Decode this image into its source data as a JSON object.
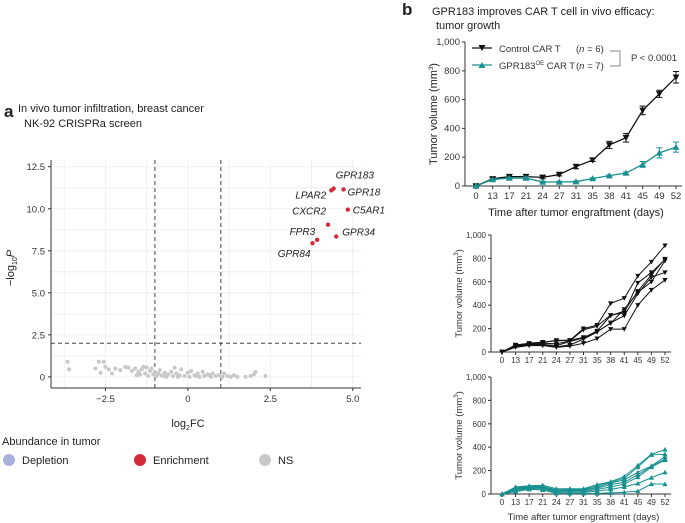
{
  "colors": {
    "enrichment": "#d62a3a",
    "depletion": "#a8b0dc",
    "ns": "#c8c8c8",
    "control": "#111111",
    "gpr183": "#1a9090"
  },
  "panel_a": {
    "label": "a",
    "title_line1": "In vivo tumor infiltration, breast cancer",
    "title_line2": "NK-92 CRISPRa screen",
    "legend": {
      "title": "Abundance in tumor",
      "items": [
        {
          "label": "Depletion",
          "color": "#a8b0dc"
        },
        {
          "label": "Enrichment",
          "color": "#d62a3a"
        },
        {
          "label": "NS",
          "color": "#c8c8c8"
        }
      ]
    }
  },
  "panel_b": {
    "label": "b",
    "title_line1": "GPR183 improves CAR T cell in vivo efficacy:",
    "title_line2": "tumor growth",
    "legend": {
      "control": "Control CAR T",
      "control_n_pre": "(",
      "control_n_var": "n",
      "control_n_post": " = 6)",
      "gpr_main": "GPR183",
      "gpr_sup": "OE",
      "gpr_tail": " CAR T",
      "gpr_n_pre": "(",
      "gpr_n_var": "n",
      "gpr_n_post": " = 7)",
      "pvalue": "P < 0.0001"
    }
  },
  "chart_data": [
    {
      "type": "scatter",
      "xlabel": {
        "main": "log",
        "sub": "2",
        "tail": "FC"
      },
      "ylabel": {
        "main": "−log",
        "sub": "10",
        "tail": "P"
      },
      "xlim": [
        -4.15,
        5.25
      ],
      "ylim": [
        -0.66,
        12.9
      ],
      "xticks": [
        -2.5,
        0,
        2.5,
        5.0
      ],
      "xtick_labels": [
        "−2.5",
        "0",
        "2.5",
        "5.0"
      ],
      "yticks": [
        0,
        2.5,
        5,
        7.5,
        10,
        12.5
      ],
      "ytick_labels": [
        "0",
        "2.5",
        "5.0",
        "7.5",
        "10.0",
        "12.5"
      ],
      "grid": true,
      "thresholds": {
        "log2fc": [
          -1,
          1
        ],
        "neg_log10p": 2
      },
      "enriched": [
        {
          "gene": "GPR183",
          "x": 4.42,
          "y": 11.2
        },
        {
          "gene": "LPAR2",
          "x": 4.35,
          "y": 11.1
        },
        {
          "gene": "GPR18",
          "x": 4.72,
          "y": 11.15
        },
        {
          "gene": "C5AR1",
          "x": 4.85,
          "y": 9.95
        },
        {
          "gene": "CXCR2",
          "x": 4.25,
          "y": 9.05
        },
        {
          "gene": "GPR34",
          "x": 4.5,
          "y": 8.35
        },
        {
          "gene": "FPR3",
          "x": 3.92,
          "y": 8.15
        },
        {
          "gene": "GPR84",
          "x": 3.78,
          "y": 7.95
        }
      ],
      "ns": [
        [
          -3.65,
          0.9
        ],
        [
          -3.6,
          0.45
        ],
        [
          -2.7,
          0.9
        ],
        [
          -2.55,
          0.9
        ],
        [
          -2.8,
          0.5
        ],
        [
          -2.65,
          0.25
        ],
        [
          -2.5,
          0.6
        ],
        [
          -2.4,
          0.45
        ],
        [
          -2.3,
          0.2
        ],
        [
          -2.2,
          0.5
        ],
        [
          -2.05,
          0.4
        ],
        [
          -1.9,
          0.6
        ],
        [
          -1.8,
          0.55
        ],
        [
          -1.7,
          0.35
        ],
        [
          -1.6,
          0.5
        ],
        [
          -1.55,
          0.1
        ],
        [
          -1.5,
          0.3
        ],
        [
          -1.4,
          0.45
        ],
        [
          -1.35,
          0.6
        ],
        [
          -1.3,
          0.2
        ],
        [
          -1.25,
          0.55
        ],
        [
          -1.2,
          0.05
        ],
        [
          -1.15,
          0.35
        ],
        [
          -1.1,
          0.5
        ],
        [
          -1.05,
          0.15
        ],
        [
          -1.0,
          0.3
        ],
        [
          -0.95,
          0.05
        ],
        [
          -0.9,
          0.2
        ],
        [
          -0.85,
          0.4
        ],
        [
          -0.8,
          0.1
        ],
        [
          -0.7,
          0.25
        ],
        [
          -0.65,
          0.0
        ],
        [
          -0.6,
          0.15
        ],
        [
          -0.5,
          0.3
        ],
        [
          -0.45,
          0.05
        ],
        [
          -0.4,
          0.55
        ],
        [
          -0.35,
          0.2
        ],
        [
          -0.3,
          0.0
        ],
        [
          -0.25,
          0.1
        ],
        [
          -0.2,
          0.45
        ],
        [
          -0.1,
          0.05
        ],
        [
          0.0,
          0.25
        ],
        [
          0.05,
          0.0
        ],
        [
          0.1,
          0.35
        ],
        [
          0.2,
          0.1
        ],
        [
          0.3,
          0.2
        ],
        [
          0.35,
          0.0
        ],
        [
          0.45,
          0.3
        ],
        [
          0.5,
          0.05
        ],
        [
          0.6,
          0.15
        ],
        [
          0.7,
          0.0
        ],
        [
          0.75,
          0.2
        ],
        [
          0.85,
          0.05
        ],
        [
          0.95,
          0.1
        ],
        [
          1.05,
          0.0
        ],
        [
          1.1,
          0.2
        ],
        [
          1.2,
          0.05
        ],
        [
          1.3,
          0.0
        ],
        [
          1.4,
          0.1
        ],
        [
          1.5,
          0.0
        ],
        [
          1.75,
          0.0
        ],
        [
          1.9,
          0.05
        ],
        [
          2.0,
          0.15
        ],
        [
          2.05,
          0.3
        ],
        [
          2.35,
          0.05
        ],
        [
          -1.45,
          0.15
        ],
        [
          -0.75,
          0.05
        ],
        [
          0.25,
          0.05
        ],
        [
          0.65,
          0.1
        ]
      ]
    },
    {
      "type": "line",
      "categories": [
        "0",
        "13",
        "17",
        "21",
        "24",
        "27",
        "31",
        "35",
        "38",
        "41",
        "45",
        "49",
        "52"
      ],
      "xlabel": "Time after tumor engraftment (days)",
      "ylabel": {
        "main": "Tumor volume (mm",
        "sup": "3",
        "tail": ")"
      },
      "ylim": [
        0,
        1000
      ],
      "yticks": [
        0,
        200,
        400,
        600,
        800,
        1000
      ],
      "ytick_labels": [
        "0",
        "200",
        "400",
        "600",
        "800",
        "1,000"
      ],
      "series": [
        {
          "name": "Control CAR T",
          "marker": "triangle-down",
          "values": [
            0,
            50,
            65,
            65,
            60,
            80,
            135,
            180,
            285,
            335,
            525,
            640,
            755
          ],
          "errors": [
            10,
            10,
            15,
            15,
            10,
            10,
            15,
            10,
            25,
            30,
            30,
            25,
            40
          ]
        },
        {
          "name": "GPR183OE CAR T",
          "marker": "triangle-up",
          "values": [
            0,
            45,
            55,
            55,
            28,
            28,
            30,
            52,
            72,
            90,
            150,
            230,
            270
          ],
          "errors": [
            5,
            5,
            5,
            8,
            5,
            5,
            5,
            5,
            5,
            8,
            20,
            35,
            35
          ]
        }
      ]
    },
    {
      "type": "line",
      "categories": [
        "0",
        "13",
        "17",
        "21",
        "24",
        "27",
        "31",
        "35",
        "38",
        "41",
        "45",
        "49",
        "52"
      ],
      "ylabel": {
        "main": "Tumor volume (mm",
        "sup": "3",
        "tail": ")"
      },
      "ylim": [
        0,
        1000
      ],
      "yticks": [
        0,
        200,
        400,
        600,
        800,
        1000
      ],
      "ytick_labels": [
        "0",
        "200",
        "400",
        "600",
        "800",
        "1,000"
      ],
      "series": [
        {
          "values": [
            0,
            60,
            75,
            85,
            95,
            100,
            200,
            230,
            415,
            460,
            650,
            770,
            910
          ]
        },
        {
          "values": [
            0,
            55,
            70,
            75,
            70,
            95,
            190,
            220,
            315,
            335,
            590,
            680,
            790
          ]
        },
        {
          "values": [
            0,
            50,
            65,
            65,
            55,
            90,
            120,
            180,
            310,
            350,
            520,
            660,
            795
          ]
        },
        {
          "values": [
            0,
            45,
            60,
            60,
            45,
            60,
            110,
            170,
            250,
            310,
            500,
            640,
            680
          ]
        },
        {
          "values": [
            0,
            40,
            55,
            55,
            40,
            50,
            75,
            115,
            195,
            195,
            400,
            530,
            615
          ]
        },
        {
          "values": [
            0,
            60,
            70,
            80,
            100,
            100,
            125,
            175,
            245,
            365,
            510,
            600,
            780
          ]
        }
      ]
    },
    {
      "type": "line",
      "categories": [
        "0",
        "13",
        "17",
        "21",
        "24",
        "27",
        "31",
        "35",
        "38",
        "41",
        "45",
        "49",
        "52"
      ],
      "xlabel": "Time after tumor engraftment (days)",
      "ylabel": {
        "main": "Tumor volume (mm",
        "sup": "3",
        "tail": ")"
      },
      "ylim": [
        0,
        1000
      ],
      "yticks": [
        0,
        200,
        400,
        600,
        800,
        1000
      ],
      "ytick_labels": [
        "0",
        "200",
        "400",
        "600",
        "800",
        "1,000"
      ],
      "series": [
        {
          "values": [
            0,
            60,
            70,
            75,
            45,
            45,
            45,
            80,
            105,
            150,
            245,
            340,
            380
          ]
        },
        {
          "values": [
            0,
            55,
            65,
            65,
            35,
            40,
            40,
            75,
            100,
            135,
            230,
            335,
            340
          ]
        },
        {
          "values": [
            0,
            50,
            60,
            60,
            30,
            35,
            35,
            60,
            95,
            120,
            185,
            240,
            320
          ]
        },
        {
          "values": [
            0,
            45,
            55,
            55,
            25,
            30,
            30,
            50,
            80,
            100,
            165,
            235,
            300
          ]
        },
        {
          "values": [
            0,
            40,
            50,
            50,
            20,
            20,
            20,
            40,
            60,
            85,
            145,
            230,
            290
          ]
        },
        {
          "values": [
            0,
            30,
            45,
            40,
            15,
            15,
            15,
            25,
            40,
            60,
            90,
            140,
            185
          ]
        },
        {
          "values": [
            0,
            20,
            40,
            35,
            5,
            5,
            5,
            5,
            10,
            15,
            25,
            85,
            85
          ]
        }
      ]
    }
  ]
}
